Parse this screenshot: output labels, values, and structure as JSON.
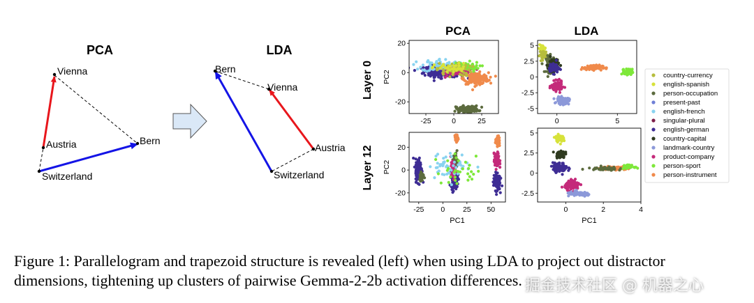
{
  "figure": {
    "left": {
      "pca_title": "PCA",
      "lda_title": "LDA",
      "pca_labels": {
        "vienna": "Vienna",
        "austria": "Austria",
        "bern": "Bern",
        "switzerland": "Switzerland"
      },
      "lda_labels": {
        "bern": "Bern",
        "vienna": "Vienna",
        "austria": "Austria",
        "switzerland": "Switzerland"
      },
      "arrow_colors": {
        "red": "#e8161c",
        "blue": "#1414e6",
        "arrow_fill": "#dae8f7"
      }
    },
    "right": {
      "pca_title": "PCA",
      "lda_title": "LDA",
      "row_labels": [
        "Layer 0",
        "Layer 12"
      ],
      "ylabel": "PC2",
      "xlabel": "PC1"
    },
    "legend": [
      {
        "label": "country-currency",
        "color": "#b6bd3d"
      },
      {
        "label": "english-spanish",
        "color": "#d7e23a"
      },
      {
        "label": "person-occupation",
        "color": "#5c6b3e"
      },
      {
        "label": "present-past",
        "color": "#6f7fd6"
      },
      {
        "label": "english-french",
        "color": "#89d3f0"
      },
      {
        "label": "singular-plural",
        "color": "#7d1f4a"
      },
      {
        "label": "english-german",
        "color": "#3e2d94"
      },
      {
        "label": "country-capital",
        "color": "#2f3b20"
      },
      {
        "label": "landmark-country",
        "color": "#8c99d9"
      },
      {
        "label": "product-company",
        "color": "#c42a7a"
      },
      {
        "label": "person-sport",
        "color": "#7ee83a"
      },
      {
        "label": "person-instrument",
        "color": "#f08a4b"
      }
    ]
  },
  "chart_data": [
    {
      "type": "scatter",
      "panel": "PCA Layer 0",
      "xlim": [
        -40,
        40
      ],
      "ylim": [
        -28,
        22
      ],
      "x_ticks": [
        -25,
        0,
        25
      ],
      "y_ticks": [
        20,
        0,
        -20
      ],
      "clusters": [
        {
          "series": "english-german",
          "cx": -8,
          "cy": 1,
          "sx": 17,
          "sy": 3.5,
          "n": 320
        },
        {
          "series": "product-company",
          "cx": 6,
          "cy": 1,
          "sx": 11,
          "sy": 3,
          "n": 150
        },
        {
          "series": "person-instrument",
          "cx": 20,
          "cy": -4,
          "sx": 10,
          "sy": 3.5,
          "n": 190
        },
        {
          "series": "english-french",
          "cx": -12,
          "cy": 5,
          "sx": 15,
          "sy": 4,
          "n": 70
        },
        {
          "series": "person-sport",
          "cx": 10,
          "cy": 4,
          "sx": 12,
          "sy": 3,
          "n": 50
        },
        {
          "series": "country-currency",
          "cx": 0,
          "cy": 2,
          "sx": 14,
          "sy": 4,
          "n": 50
        },
        {
          "series": "english-spanish",
          "cx": -2,
          "cy": 3,
          "sx": 14,
          "sy": 3,
          "n": 40
        },
        {
          "series": "person-occupation",
          "cx": 12,
          "cy": -25,
          "sx": 9,
          "sy": 2,
          "n": 110
        }
      ]
    },
    {
      "type": "scatter",
      "panel": "LDA Layer 0",
      "xlim": [
        -1.6,
        6.6
      ],
      "ylim": [
        -5.8,
        5.8
      ],
      "x_ticks": [
        0,
        5
      ],
      "y_ticks": [
        5.0,
        2.5,
        0.0,
        -2.5,
        -5.0
      ],
      "clusters": [
        {
          "series": "english-spanish",
          "cx": -1.2,
          "cy": 4.5,
          "sx": 0.25,
          "sy": 0.5,
          "n": 40
        },
        {
          "series": "country-currency",
          "cx": -1.1,
          "cy": 3.5,
          "sx": 0.3,
          "sy": 0.6,
          "n": 40
        },
        {
          "series": "person-occupation",
          "cx": -0.5,
          "cy": 2.0,
          "sx": 0.35,
          "sy": 1.2,
          "n": 80
        },
        {
          "series": "country-capital",
          "cx": -0.3,
          "cy": 2.0,
          "sx": 0.4,
          "sy": 1.0,
          "n": 60
        },
        {
          "series": "english-german",
          "cx": -0.3,
          "cy": 1.5,
          "sx": 0.4,
          "sy": 0.8,
          "n": 50
        },
        {
          "series": "product-company",
          "cx": 0.0,
          "cy": -1.5,
          "sx": 0.4,
          "sy": 0.7,
          "n": 110
        },
        {
          "series": "landmark-country",
          "cx": 0.5,
          "cy": -3.8,
          "sx": 0.45,
          "sy": 0.5,
          "n": 100
        },
        {
          "series": "person-instrument",
          "cx": 3.0,
          "cy": 1.5,
          "sx": 0.7,
          "sy": 0.35,
          "n": 90
        },
        {
          "series": "person-sport",
          "cx": 5.9,
          "cy": 0.8,
          "sx": 0.3,
          "sy": 0.4,
          "n": 90
        }
      ]
    },
    {
      "type": "scatter",
      "panel": "PCA Layer 12",
      "xlim": [
        -35,
        65
      ],
      "ylim": [
        -28,
        33
      ],
      "x_ticks": [
        -25,
        0,
        25,
        50
      ],
      "y_ticks": [
        20,
        0,
        -20
      ],
      "clusters": [
        {
          "series": "english-german",
          "cx": -25,
          "cy": 0,
          "sx": 3,
          "sy": 9,
          "n": 180
        },
        {
          "series": "person-occupation",
          "cx": -22,
          "cy": -5,
          "sx": 2,
          "sy": 4,
          "n": 40
        },
        {
          "series": "english-german",
          "cx": 12,
          "cy": -8,
          "sx": 3,
          "sy": 7,
          "n": 140
        },
        {
          "series": "person-occupation",
          "cx": 13,
          "cy": 8,
          "sx": 2,
          "sy": 6,
          "n": 60
        },
        {
          "series": "person-instrument",
          "cx": 14,
          "cy": 28,
          "sx": 1.5,
          "sy": 3,
          "n": 50
        },
        {
          "series": "product-company",
          "cx": 11,
          "cy": 0,
          "sx": 2.5,
          "sy": 6,
          "n": 60
        },
        {
          "series": "english-german",
          "cx": 56,
          "cy": -10,
          "sx": 3,
          "sy": 7,
          "n": 130
        },
        {
          "series": "product-company",
          "cx": 56,
          "cy": 8,
          "sx": 2.5,
          "sy": 6,
          "n": 80
        },
        {
          "series": "person-instrument",
          "cx": 57,
          "cy": 25,
          "sx": 2,
          "sy": 4,
          "n": 50
        },
        {
          "series": "english-french",
          "cx": 8,
          "cy": 4,
          "sx": 20,
          "sy": 10,
          "n": 50
        },
        {
          "series": "person-sport",
          "cx": 20,
          "cy": 0,
          "sx": 25,
          "sy": 12,
          "n": 30
        }
      ]
    },
    {
      "type": "scatter",
      "panel": "LDA Layer 12",
      "xlim": [
        -1.5,
        4.0
      ],
      "ylim": [
        -3.6,
        5.6
      ],
      "x_ticks": [
        0,
        2,
        4
      ],
      "y_ticks": [
        5.0,
        2.5,
        0.0,
        -2.5
      ],
      "clusters": [
        {
          "series": "english-spanish",
          "cx": -0.35,
          "cy": 4.3,
          "sx": 0.2,
          "sy": 0.4,
          "n": 50
        },
        {
          "series": "country-capital",
          "cx": -0.3,
          "cy": 2.4,
          "sx": 0.22,
          "sy": 0.45,
          "n": 60
        },
        {
          "series": "english-german",
          "cx": -0.3,
          "cy": 0.7,
          "sx": 0.35,
          "sy": 0.5,
          "n": 110
        },
        {
          "series": "product-company",
          "cx": 0.35,
          "cy": -1.5,
          "sx": 0.35,
          "sy": 0.5,
          "n": 100
        },
        {
          "series": "landmark-country",
          "cx": 0.7,
          "cy": -2.6,
          "sx": 0.6,
          "sy": 0.25,
          "n": 70
        },
        {
          "series": "person-instrument",
          "cx": 2.6,
          "cy": 0.6,
          "sx": 0.6,
          "sy": 0.2,
          "n": 80
        },
        {
          "series": "person-occupation",
          "cx": 2.1,
          "cy": 0.6,
          "sx": 0.8,
          "sy": 0.2,
          "n": 50
        },
        {
          "series": "person-sport",
          "cx": 3.3,
          "cy": 0.8,
          "sx": 0.3,
          "sy": 0.2,
          "n": 30
        }
      ]
    }
  ],
  "caption": {
    "text": "Figure 1:  Parallelogram and trapezoid structure is revealed (left) when using LDA to project out distractor dimensions, tightening up clusters of pairwise Gemma-2-2b activation differences."
  },
  "watermark": {
    "text": "掘金技术社区 @ 机器之心"
  }
}
